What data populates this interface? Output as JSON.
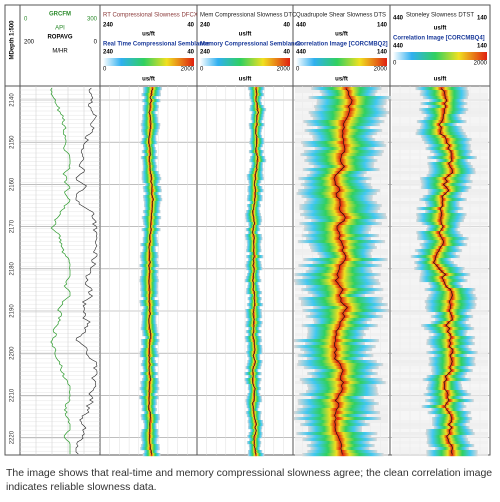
{
  "depth_track": {
    "label": "MDepth 1:500",
    "depths": [
      "2140",
      "2150",
      "2160",
      "2170",
      "2180",
      "2190",
      "2200",
      "2210",
      "2220"
    ]
  },
  "track1": {
    "curves": [
      {
        "name": "GRCFM",
        "left": "0",
        "right": "300",
        "unit": "API"
      },
      {
        "name": "ROPAVG",
        "left": "200",
        "right": "0",
        "unit": "M/HR"
      }
    ]
  },
  "tracks": [
    {
      "title": "RT Compressional Slowness DFCX",
      "left": "240",
      "right": "40",
      "unit": "us/ft",
      "image_title": "Real Time Compressional Semblance",
      "image_left": "240",
      "image_right": "40",
      "scale_min": "0",
      "scale_max": "2000",
      "scale_unit": "us/ft"
    },
    {
      "title": "Mem Compressional Slowness DTC",
      "left": "240",
      "right": "40",
      "unit": "us/ft",
      "image_title": "Memory Compressional Semblance",
      "image_left": "240",
      "image_right": "40",
      "scale_min": "0",
      "scale_max": "2000",
      "scale_unit": "us/ft"
    },
    {
      "title": "Quadrupole Shear Slowness DTS",
      "left": "440",
      "right": "140",
      "unit": "us/ft",
      "image_title": "Correlation Image [CORCMBQ2]",
      "image_left": "440",
      "image_right": "140",
      "scale_min": "0",
      "scale_max": "2000",
      "scale_unit": "us/ft"
    },
    {
      "title": "Stoneley Slowness DTST",
      "left": "440",
      "right": "140",
      "unit": "us/ft",
      "image_title": "Correlation Image [CORCMBQ4]",
      "image_left": "440",
      "image_right": "140",
      "scale_min": "0",
      "scale_max": "2000",
      "scale_unit": "us/ft"
    }
  ],
  "caption": "The image shows that real-time and memory compressional slowness agree; the clean correlation image indicates reliable slowness data."
}
